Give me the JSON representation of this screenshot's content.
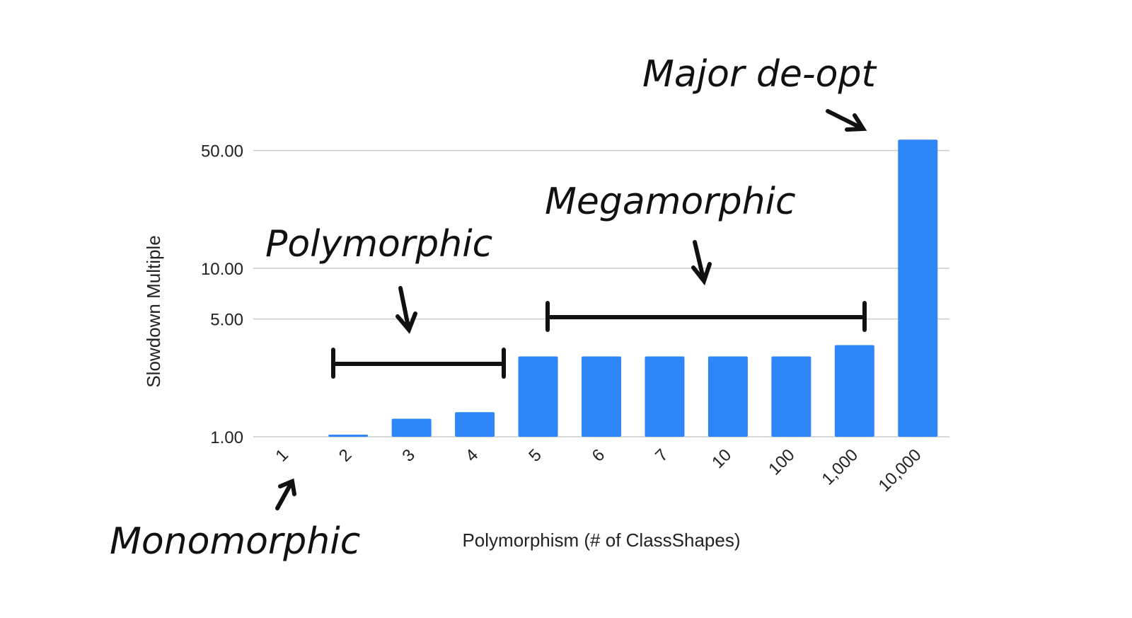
{
  "chart_data": {
    "type": "bar",
    "xlabel": "Polymorphism (# of ClassShapes)",
    "ylabel": "Slowdown Multiple",
    "yscale": "log",
    "ylim": [
      1,
      60
    ],
    "yticks": [
      {
        "value": 1,
        "label": "1.00"
      },
      {
        "value": 5,
        "label": "5.00"
      },
      {
        "value": 10,
        "label": "10.00"
      },
      {
        "value": 50,
        "label": "50.00"
      }
    ],
    "grid": true,
    "legend": "none",
    "bar_color": "#2f86f6",
    "categories": [
      "1",
      "2",
      "3",
      "4",
      "5",
      "6",
      "7",
      "10",
      "100",
      "1,000",
      "10,000"
    ],
    "values": [
      1.0,
      1.03,
      1.28,
      1.4,
      3.0,
      3.0,
      3.0,
      3.0,
      3.0,
      3.5,
      58.0
    ],
    "annotations": [
      {
        "id": "monomorphic",
        "text": "Monomorphic"
      },
      {
        "id": "polymorphic",
        "text": "Polymorphic"
      },
      {
        "id": "megamorphic",
        "text": "Megamorphic"
      },
      {
        "id": "deopt",
        "text": "Major de-opt"
      }
    ]
  }
}
